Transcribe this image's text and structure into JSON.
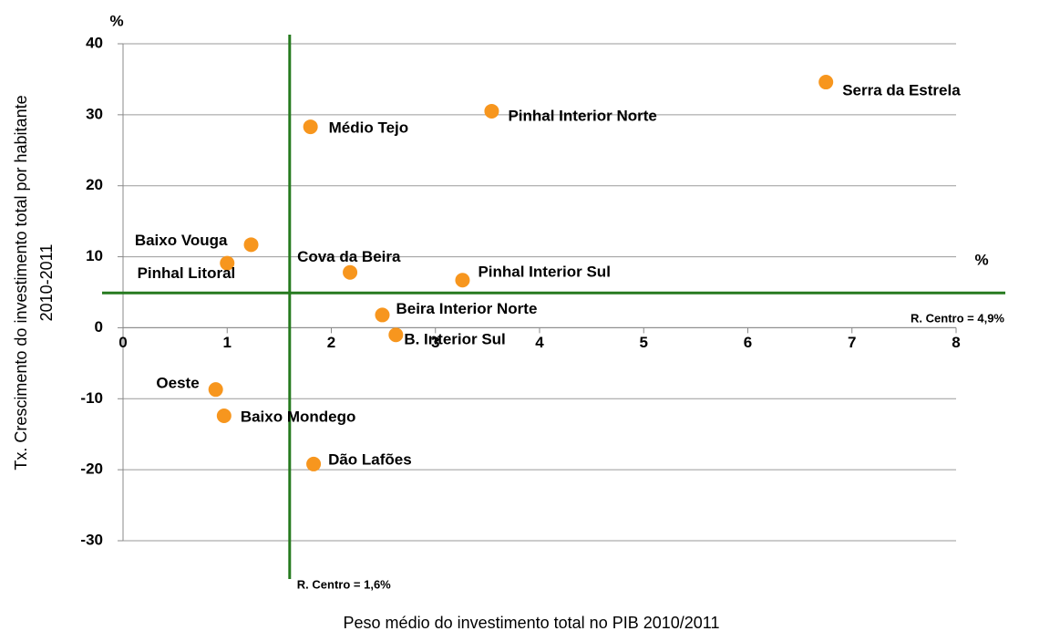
{
  "chart_data": {
    "type": "scatter",
    "x": [
      6.75,
      3.54,
      1.8,
      1.23,
      1.0,
      2.18,
      3.26,
      2.49,
      2.62,
      0.89,
      0.97,
      1.83
    ],
    "values": [
      34.6,
      30.5,
      28.3,
      11.7,
      9.1,
      7.8,
      6.7,
      1.8,
      -1.0,
      -8.7,
      -12.4,
      -19.2
    ],
    "labels": [
      "Serra da Estrela",
      "Pinhal Interior Norte",
      "Médio Tejo",
      "Baixo Vouga",
      "Pinhal Litoral",
      "Cova da Beira",
      "Pinhal Interior Sul",
      "Beira Interior Norte",
      "B. Interior Sul",
      "Oeste",
      "Baixo Mondego",
      "Dão Lafões"
    ],
    "color": "#f7961e",
    "xlim": [
      0,
      8
    ],
    "xticks": [
      0,
      1,
      2,
      3,
      4,
      5,
      6,
      7,
      8
    ],
    "ylim": [
      -30,
      40
    ],
    "yticks": [
      -30,
      -20,
      -10,
      0,
      10,
      20,
      30,
      40
    ],
    "grid": true,
    "y_unit": "%",
    "x_unit": "%",
    "ylabel": [
      "Tx. Crescimento do investimento total por habitante",
      "2010-2011"
    ],
    "xlabel": "Peso médio do investimento total no PIB 2010/2011",
    "reference_lines": [
      {
        "axis": "x",
        "value": 1.6,
        "label": "R. Centro = 1,6%",
        "color": "#267a1f"
      },
      {
        "axis": "y",
        "value": 4.9,
        "label": "R. Centro = 4,9%",
        "color": "#267a1f"
      }
    ]
  }
}
